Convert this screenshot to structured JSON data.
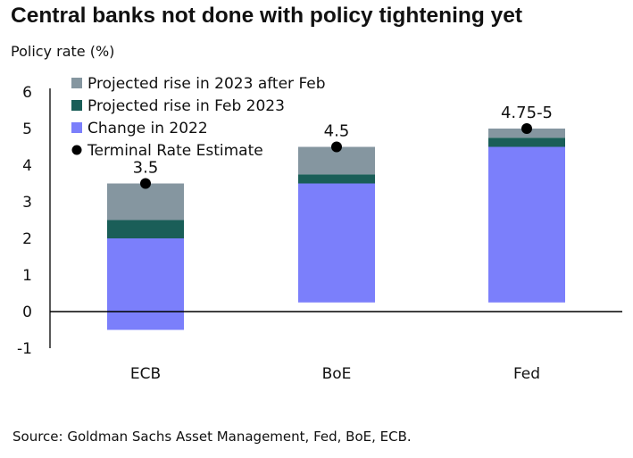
{
  "title": "Central banks not done with policy tightening yet",
  "source": "Source: Goldman Sachs Asset Management, Fed, BoE, ECB.",
  "colors": {
    "after_feb": "#8596a0",
    "feb_2023": "#1a5e58",
    "change_2022": "#7b7ffb",
    "marker": "#000000",
    "axis": "#000000"
  },
  "chart_data": {
    "type": "bar",
    "stacked": true,
    "ylabel": "Policy rate (%)",
    "ylim": [
      -1,
      6
    ],
    "yticks": [
      6,
      5,
      4,
      3,
      2,
      1,
      0,
      -1
    ],
    "categories": [
      "ECB",
      "BoE",
      "Fed"
    ],
    "base": [
      -0.5,
      0.25,
      0.25
    ],
    "series": [
      {
        "key": "change_2022",
        "name": "Change in 2022",
        "values": [
          2.5,
          3.25,
          4.25
        ]
      },
      {
        "key": "feb_2023",
        "name": "Projected rise in Feb 2023",
        "values": [
          0.5,
          0.25,
          0.25
        ]
      },
      {
        "key": "after_feb",
        "name": "Projected rise in 2023 after Feb",
        "values": [
          1.0,
          0.75,
          0.25
        ]
      }
    ],
    "terminal": {
      "name": "Terminal Rate Estimate",
      "values": [
        3.5,
        4.5,
        5.0
      ],
      "labels": [
        "3.5",
        "4.5",
        "4.75-5"
      ]
    },
    "legend": [
      {
        "name": "Projected rise in 2023 after Feb",
        "marker": "square",
        "color_key": "after_feb"
      },
      {
        "name": "Projected rise in Feb 2023",
        "marker": "square",
        "color_key": "feb_2023"
      },
      {
        "name": "Change in 2022",
        "marker": "square",
        "color_key": "change_2022"
      },
      {
        "name": "Terminal Rate Estimate",
        "marker": "dot",
        "color_key": "marker"
      }
    ],
    "legend_position": "top-left",
    "grid": false
  }
}
